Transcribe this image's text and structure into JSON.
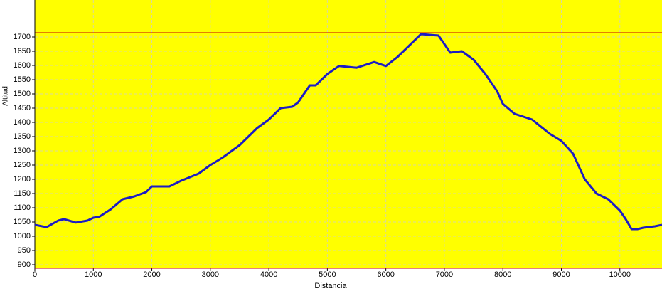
{
  "chart_data": {
    "type": "line",
    "x_label": "Distancia",
    "y_label": "Altitud",
    "x": [
      0,
      200,
      400,
      500,
      700,
      900,
      1000,
      1100,
      1300,
      1500,
      1700,
      1900,
      2000,
      2300,
      2400,
      2500,
      2800,
      3000,
      3200,
      3500,
      3800,
      4000,
      4200,
      4400,
      4500,
      4700,
      4800,
      5000,
      5200,
      5500,
      5800,
      6000,
      6200,
      6400,
      6600,
      6900,
      7100,
      7300,
      7500,
      7700,
      7900,
      8000,
      8200,
      8500,
      8800,
      9000,
      9200,
      9400,
      9600,
      9800,
      10000,
      10100,
      10200,
      10300,
      10400,
      10600,
      10720
    ],
    "series": [
      {
        "color": "#1c1cc4",
        "values": [
          1040,
          1032,
          1055,
          1060,
          1048,
          1055,
          1065,
          1068,
          1095,
          1130,
          1140,
          1155,
          1175,
          1175,
          1185,
          1195,
          1220,
          1250,
          1275,
          1320,
          1380,
          1410,
          1450,
          1455,
          1470,
          1530,
          1530,
          1570,
          1598,
          1592,
          1612,
          1598,
          1630,
          1670,
          1710,
          1705,
          1645,
          1650,
          1620,
          1570,
          1510,
          1465,
          1430,
          1410,
          1360,
          1335,
          1290,
          1200,
          1150,
          1130,
          1090,
          1060,
          1025,
          1025,
          1030,
          1035,
          1040
        ]
      }
    ],
    "max_line": 1715,
    "max_line_color": "#c80000",
    "background": "#ffff00",
    "xlim": [
      0,
      10720
    ],
    "ylim": [
      887.5,
      1830
    ],
    "xticks": [
      0,
      1000,
      2000,
      3000,
      4000,
      5000,
      6000,
      7000,
      8000,
      9000,
      10000
    ],
    "yticks": [
      900,
      950,
      1000,
      1050,
      1100,
      1150,
      1200,
      1250,
      1300,
      1350,
      1400,
      1450,
      1500,
      1550,
      1600,
      1650,
      1700
    ],
    "grid": true
  }
}
